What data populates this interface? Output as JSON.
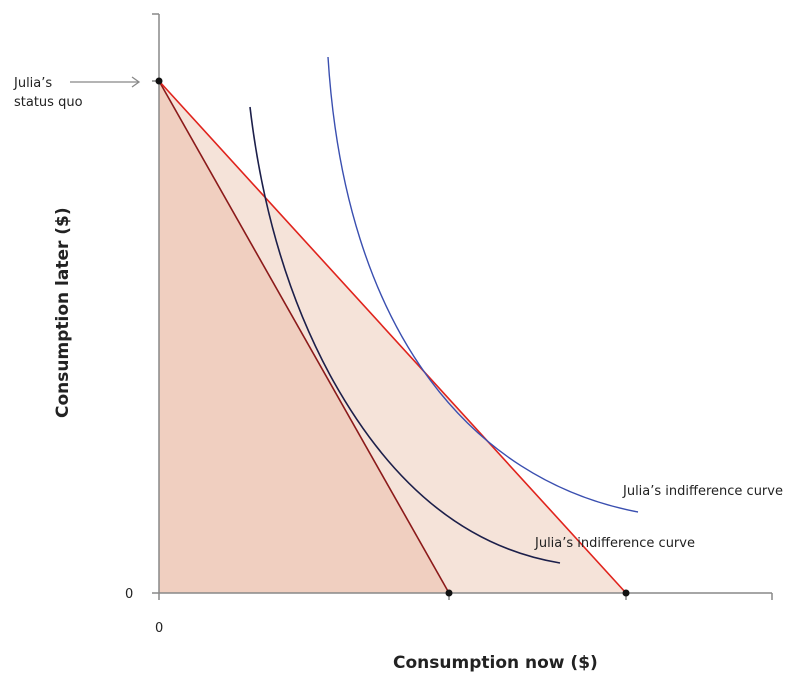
{
  "diagram": {
    "y_axis_label": "Consumption later ($)",
    "x_axis_label": "Consumption now ($)",
    "y_origin_tick": "0",
    "x_origin_tick": "0",
    "status_quo_label_line1": "Julia’s",
    "status_quo_label_line2": "status quo",
    "upper_curve_label": "Julia’s indifference curve",
    "lower_curve_label": "Julia’s indifference curve",
    "colors": {
      "axis": "#888888",
      "inner_region": "#f0cfc0",
      "outer_region": "#f5e3d9",
      "inner_budget_line": "#8b1a1a",
      "outer_budget_line": "#e0231c",
      "lower_indifference_curve": "#1c1f4a",
      "upper_indifference_curve": "#3a4fb0",
      "points": "#111111"
    }
  }
}
